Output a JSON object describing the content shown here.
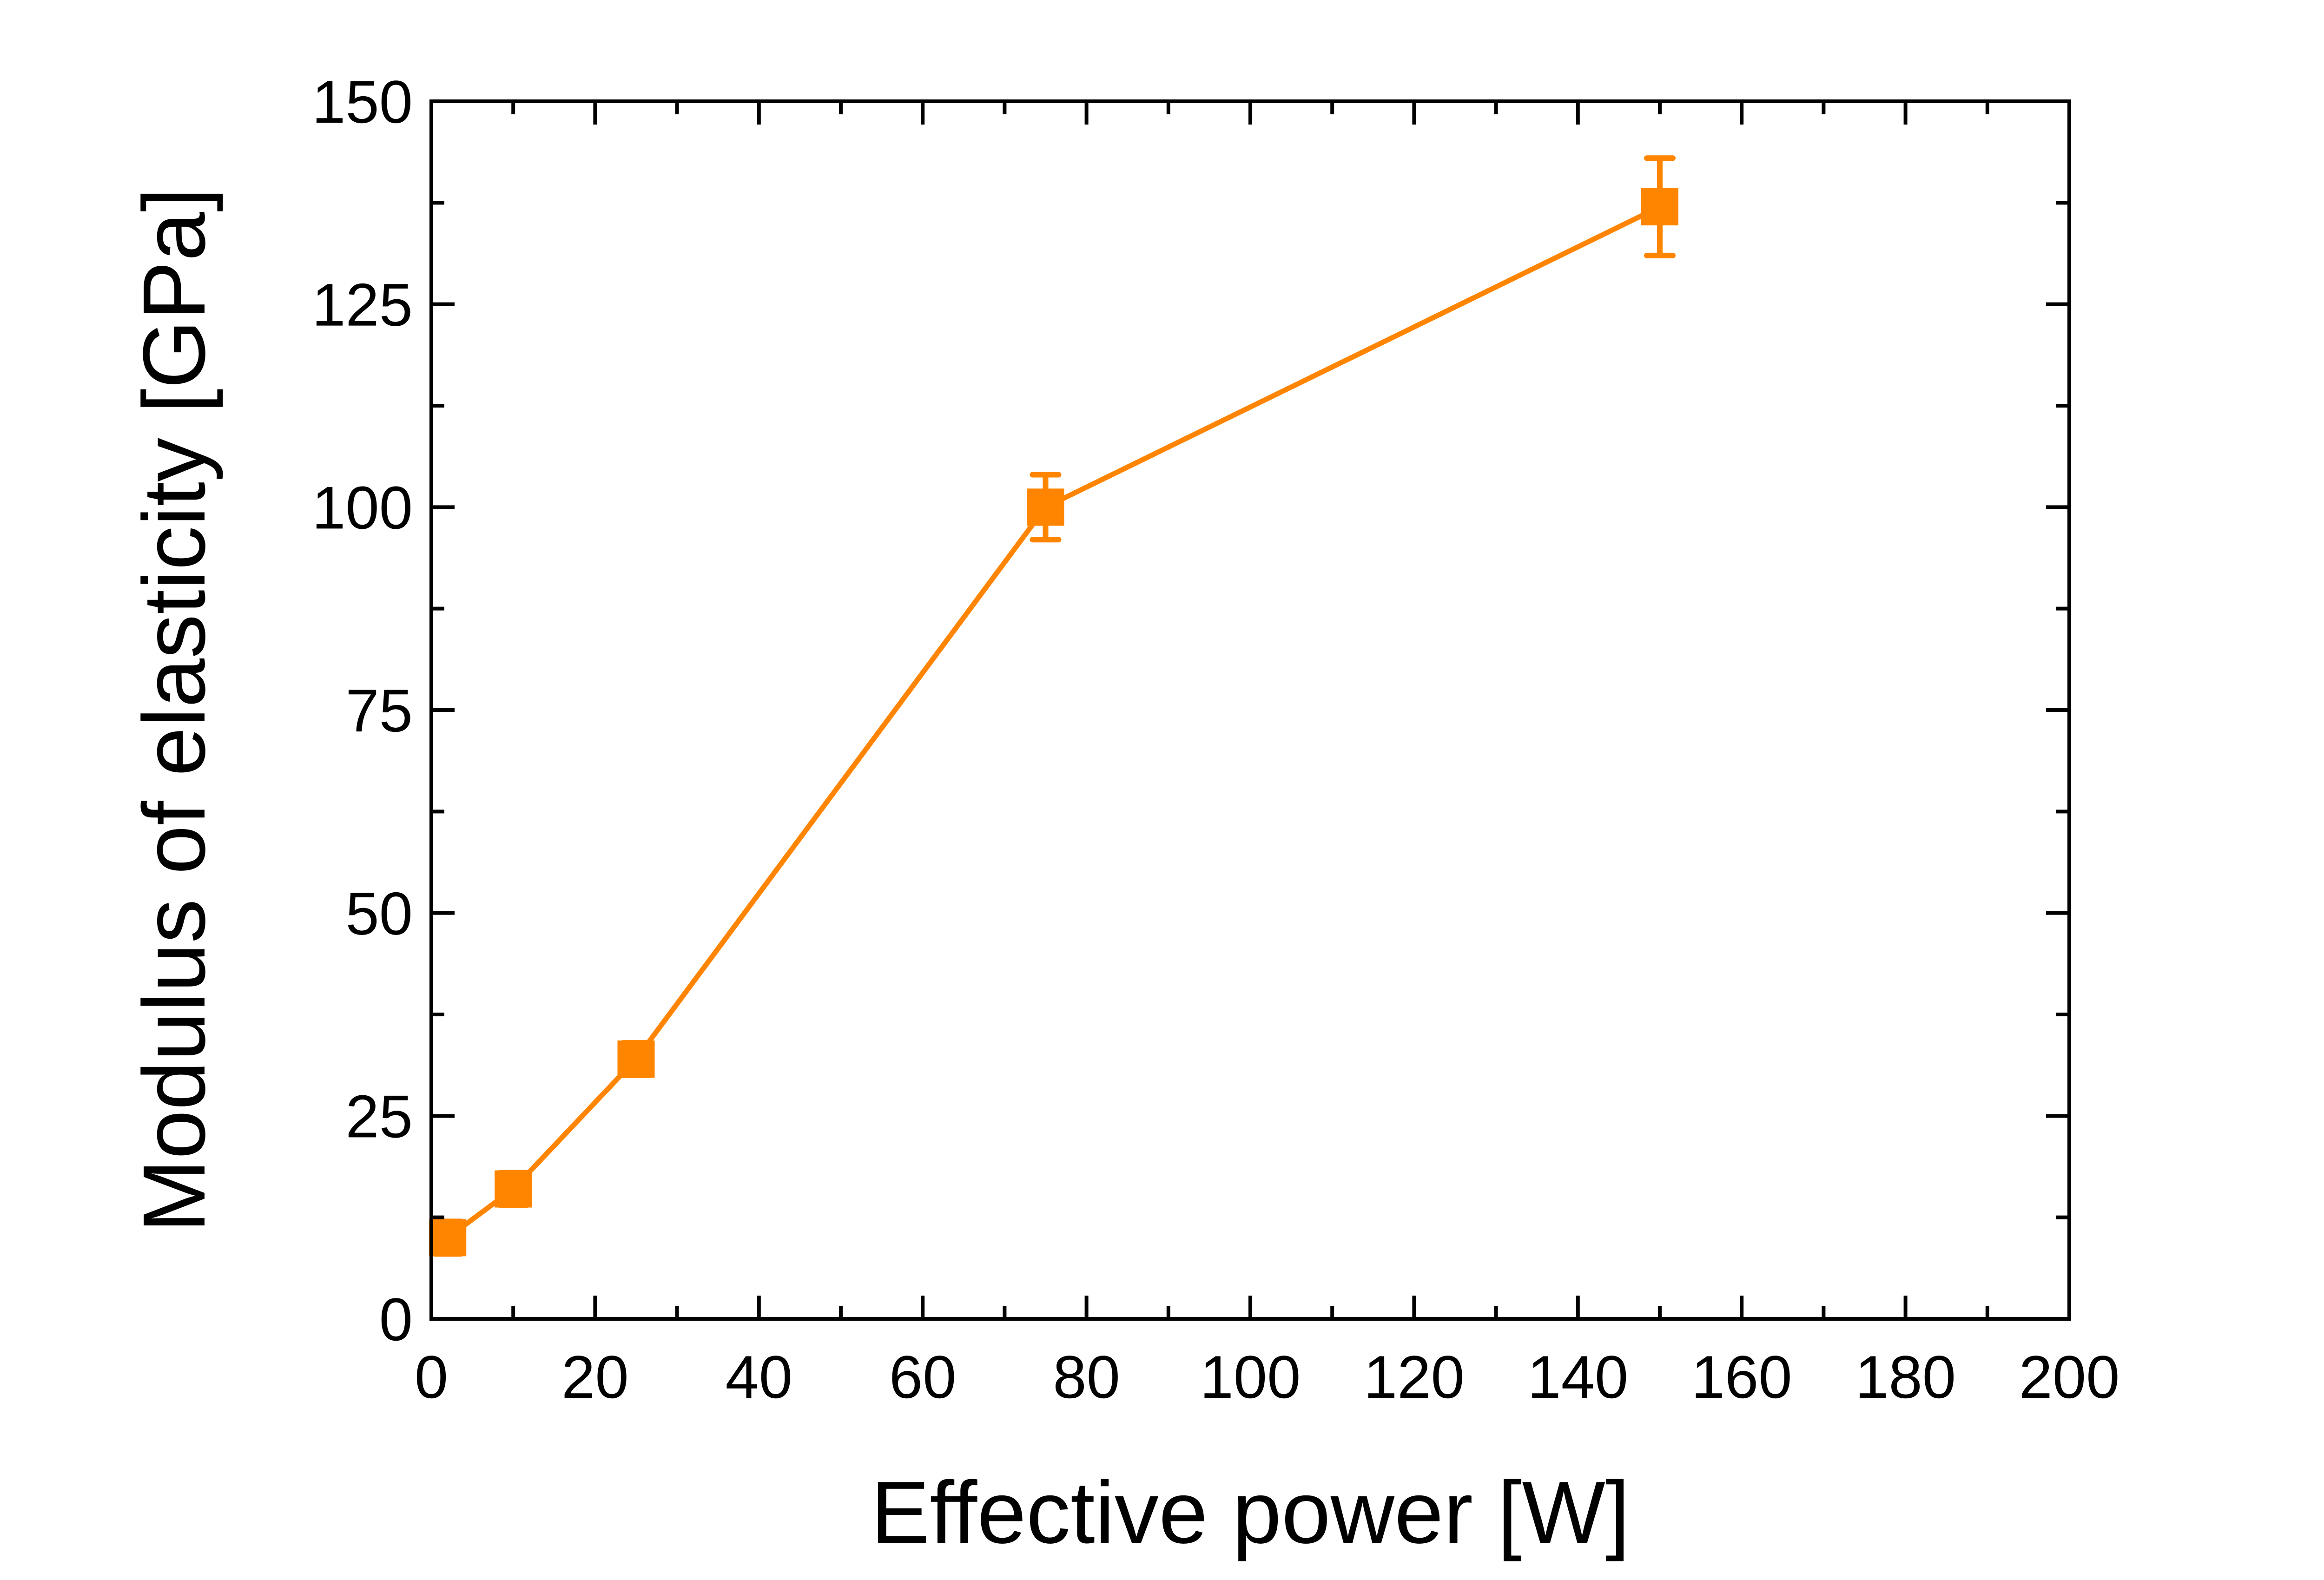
{
  "chart_data": {
    "type": "line",
    "title": "",
    "xlabel": "Effective power [W]",
    "ylabel": "Modulus of elasticity [GPa]",
    "xlim": [
      0,
      200
    ],
    "ylim": [
      0,
      150
    ],
    "xticks": [
      0,
      20,
      40,
      60,
      80,
      100,
      120,
      140,
      160,
      180,
      200
    ],
    "yticks": [
      0,
      25,
      50,
      75,
      100,
      125,
      150
    ],
    "grid": false,
    "legend": "none",
    "series": [
      {
        "name": "Modulus of elasticity",
        "color": "#FF8500",
        "marker": "square",
        "x": [
          2,
          10,
          25,
          75,
          150
        ],
        "y": [
          10,
          16,
          32,
          100,
          137
        ],
        "yerr": [
          2,
          2,
          2,
          4,
          6
        ]
      }
    ]
  }
}
